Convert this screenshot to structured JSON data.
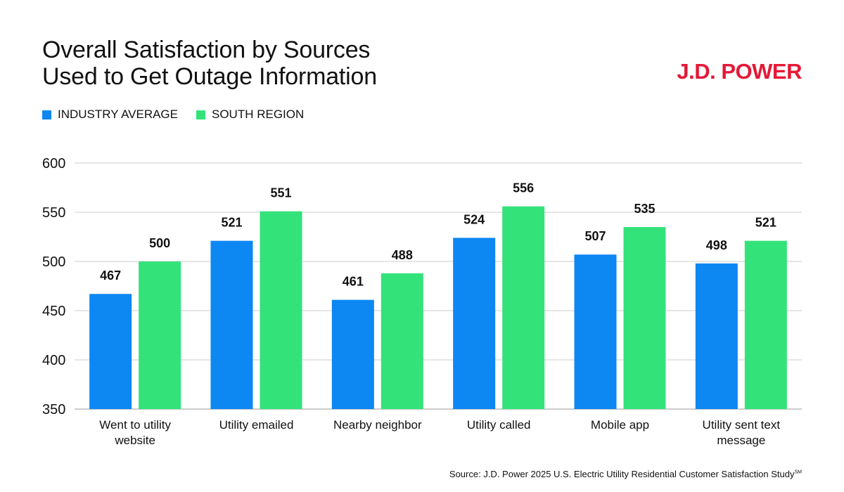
{
  "title_lines": [
    "Overall Satisfaction by Sources",
    "Used to Get Outage Information"
  ],
  "logo": "J.D. POWER",
  "source": "Source: J.D. Power 2025 U.S. Electric Utility Residential Customer Satisfaction Study",
  "source_mark": "SM",
  "colors": {
    "industry": "#0d87f2",
    "south": "#33e37a",
    "logo": "#e31937",
    "grid": "#cccccc"
  },
  "chart_data": {
    "type": "bar",
    "title": "Overall Satisfaction by Sources Used to Get Outage Information",
    "categories": [
      [
        "Went to utility",
        "website"
      ],
      [
        "Utility emailed"
      ],
      [
        "Nearby neighbor"
      ],
      [
        "Utility called"
      ],
      [
        "Mobile app"
      ],
      [
        "Utility sent text",
        "message"
      ]
    ],
    "series": [
      {
        "name": "INDUSTRY AVERAGE",
        "values": [
          467,
          521,
          461,
          524,
          507,
          498
        ]
      },
      {
        "name": "SOUTH REGION",
        "values": [
          500,
          551,
          488,
          556,
          535,
          521
        ]
      }
    ],
    "ylim": [
      350,
      600
    ],
    "yticks": [
      350,
      400,
      450,
      500,
      550,
      600
    ],
    "grid": true,
    "legend_position": "top-left"
  }
}
